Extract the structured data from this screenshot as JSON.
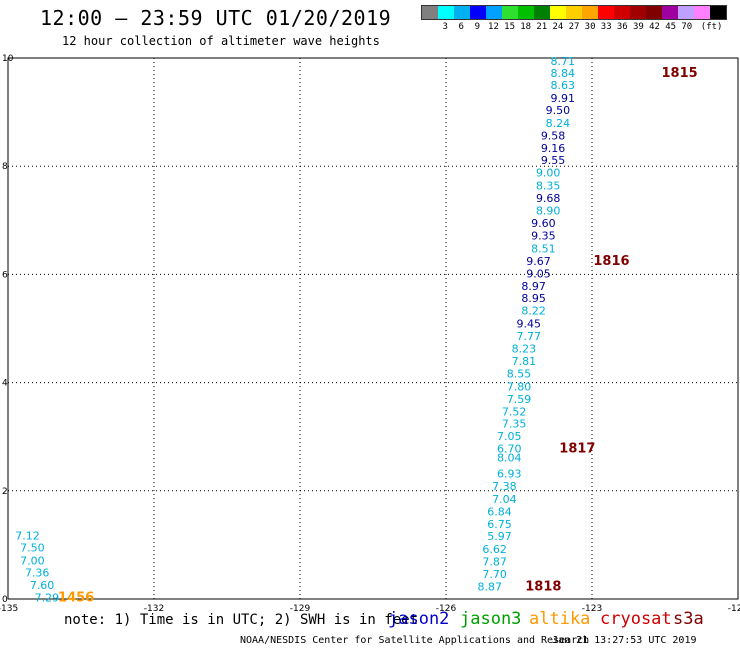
{
  "header": {
    "title": "12:00 – 23:59 UTC 01/20/2019",
    "subtitle": "12 hour collection of altimeter wave heights"
  },
  "legend": {
    "colors": [
      "#808080",
      "#00ffff",
      "#00b0f0",
      "#0000ff",
      "#00a0ff",
      "#30e030",
      "#00c000",
      "#008000",
      "#ffff00",
      "#ffd000",
      "#ffa500",
      "#ff0000",
      "#d00000",
      "#a00000",
      "#800000",
      "#a000a0",
      "#c0a0ff",
      "#ff80ff",
      "#000000"
    ],
    "labels": [
      "3",
      "6",
      "9",
      "12",
      "15",
      "18",
      "21",
      "24",
      "27",
      "30",
      "33",
      "36",
      "39",
      "42",
      "45",
      "70"
    ],
    "unit": "(ft)"
  },
  "chart_data": {
    "type": "scatter",
    "title": "12:00 – 23:59 UTC 01/20/2019",
    "subtitle": "12 hour collection of altimeter wave heights",
    "xlim": [
      -135,
      -120
    ],
    "ylim": [
      0,
      10
    ],
    "x_ticks": [
      "-135",
      "-132",
      "-129",
      "-126",
      "-123",
      "-120"
    ],
    "y_ticks": [
      "0",
      "2",
      "4",
      "6",
      "8",
      "10"
    ],
    "grid": true,
    "colors": {
      "jason2": "#0000cc",
      "jason3": "#00a000",
      "altika": "#ff9900",
      "cryosat": "#cc0000",
      "s3a": "#800000",
      "swh_low": "#00b0d8",
      "swh_mid": "#000099"
    },
    "series": [
      {
        "name": "jason3",
        "color": "#00b0d8",
        "points": [
          {
            "x": -134.6,
            "y": 1.17,
            "label": "7.12"
          },
          {
            "x": -134.5,
            "y": 0.95,
            "label": "7.50"
          },
          {
            "x": -134.5,
            "y": 0.71,
            "label": "7.00"
          },
          {
            "x": -134.4,
            "y": 0.49,
            "label": "7.36"
          },
          {
            "x": -134.3,
            "y": 0.26,
            "label": "7.60"
          },
          {
            "x": -134.2,
            "y": 0.03,
            "label": "7.29"
          }
        ]
      },
      {
        "name": "altika",
        "color": "#ff9900",
        "points": [
          {
            "x": -133.6,
            "y": 0.03,
            "label": "1456",
            "kind": "time"
          }
        ]
      },
      {
        "name": "cryosat",
        "color": "#00b0d8",
        "points": [
          {
            "x": -123.6,
            "y": 9.94,
            "label": "8.71"
          },
          {
            "x": -123.6,
            "y": 9.72,
            "label": "8.84"
          },
          {
            "x": -123.6,
            "y": 9.5,
            "label": "8.63"
          },
          {
            "x": -123.6,
            "y": 9.26,
            "label": "9.91"
          },
          {
            "x": -123.7,
            "y": 9.04,
            "label": "9.50"
          },
          {
            "x": -123.7,
            "y": 8.8,
            "label": "8.24"
          },
          {
            "x": -123.8,
            "y": 8.57,
            "label": "9.58"
          },
          {
            "x": -123.8,
            "y": 8.34,
            "label": "9.16"
          },
          {
            "x": -123.8,
            "y": 8.11,
            "label": "9.55"
          },
          {
            "x": -123.9,
            "y": 7.88,
            "label": "9.00"
          },
          {
            "x": -123.9,
            "y": 7.64,
            "label": "8.35"
          },
          {
            "x": -123.9,
            "y": 7.41,
            "label": "9.68"
          },
          {
            "x": -123.9,
            "y": 7.18,
            "label": "8.90"
          },
          {
            "x": -124.0,
            "y": 6.95,
            "label": "9.60"
          },
          {
            "x": -124.0,
            "y": 6.72,
            "label": "9.35"
          },
          {
            "x": -124.0,
            "y": 6.48,
            "label": "8.51"
          },
          {
            "x": -124.1,
            "y": 6.25,
            "label": "9.67"
          },
          {
            "x": -124.1,
            "y": 6.02,
            "label": "9.05"
          },
          {
            "x": -124.2,
            "y": 5.79,
            "label": "8.97"
          },
          {
            "x": -124.2,
            "y": 5.56,
            "label": "8.95"
          },
          {
            "x": -124.2,
            "y": 5.33,
            "label": "8.22"
          },
          {
            "x": -124.3,
            "y": 5.09,
            "label": "9.45"
          },
          {
            "x": -124.3,
            "y": 4.86,
            "label": "7.77"
          },
          {
            "x": -124.4,
            "y": 4.63,
            "label": "8.23"
          },
          {
            "x": -124.4,
            "y": 4.4,
            "label": "7.81"
          },
          {
            "x": -124.5,
            "y": 4.17,
            "label": "8.55"
          },
          {
            "x": -124.5,
            "y": 3.93,
            "label": "7.80"
          },
          {
            "x": -124.5,
            "y": 3.7,
            "label": "7.59"
          },
          {
            "x": -124.6,
            "y": 3.47,
            "label": "7.52"
          },
          {
            "x": -124.6,
            "y": 3.24,
            "label": "7.35"
          },
          {
            "x": -124.7,
            "y": 3.01,
            "label": "7.05"
          },
          {
            "x": -124.7,
            "y": 2.78,
            "label": "6.70"
          },
          {
            "x": -124.7,
            "y": 2.62,
            "label": "8.04"
          },
          {
            "x": -124.7,
            "y": 2.32,
            "label": "6.93"
          },
          {
            "x": -124.8,
            "y": 2.09,
            "label": "7.38"
          },
          {
            "x": -124.8,
            "y": 1.85,
            "label": "7.04"
          },
          {
            "x": -124.9,
            "y": 1.62,
            "label": "6.84"
          },
          {
            "x": -124.9,
            "y": 1.39,
            "label": "6.75"
          },
          {
            "x": -124.9,
            "y": 1.16,
            "label": "5.97"
          },
          {
            "x": -125.0,
            "y": 0.92,
            "label": "6.62"
          },
          {
            "x": -125.0,
            "y": 0.69,
            "label": "7.87"
          },
          {
            "x": -125.0,
            "y": 0.46,
            "label": "7.70"
          },
          {
            "x": -125.1,
            "y": 0.23,
            "label": "8.87"
          }
        ]
      },
      {
        "name": "s3a",
        "color": "#800000",
        "points": [
          {
            "x": -121.2,
            "y": 9.72,
            "label": "1815",
            "kind": "time"
          },
          {
            "x": -122.6,
            "y": 6.25,
            "label": "1816",
            "kind": "time"
          },
          {
            "x": -123.3,
            "y": 2.78,
            "label": "1817",
            "kind": "time"
          },
          {
            "x": -124.0,
            "y": 0.23,
            "label": "1818",
            "kind": "time"
          }
        ]
      }
    ],
    "dark_labels": [
      "9.91",
      "9.50",
      "9.58",
      "9.16",
      "9.55",
      "9.68",
      "9.60",
      "9.35",
      "9.67",
      "9.05",
      "8.97",
      "8.95",
      "9.45"
    ]
  },
  "footer": {
    "note": "note: 1) Time is in UTC; 2) SWH is in feet",
    "satellites": [
      {
        "name": "jason2",
        "color": "#0000cc"
      },
      {
        "name": "jason3",
        "color": "#00a000"
      },
      {
        "name": "altika",
        "color": "#ff9900"
      },
      {
        "name": "cryosat",
        "color": "#cc0000"
      },
      {
        "name": "s3a",
        "color": "#800000"
      }
    ],
    "credit": "NOAA/NESDIS Center for Satellite Applications and Research",
    "timestamp": "Jan 21 13:27:53 UTC 2019"
  }
}
